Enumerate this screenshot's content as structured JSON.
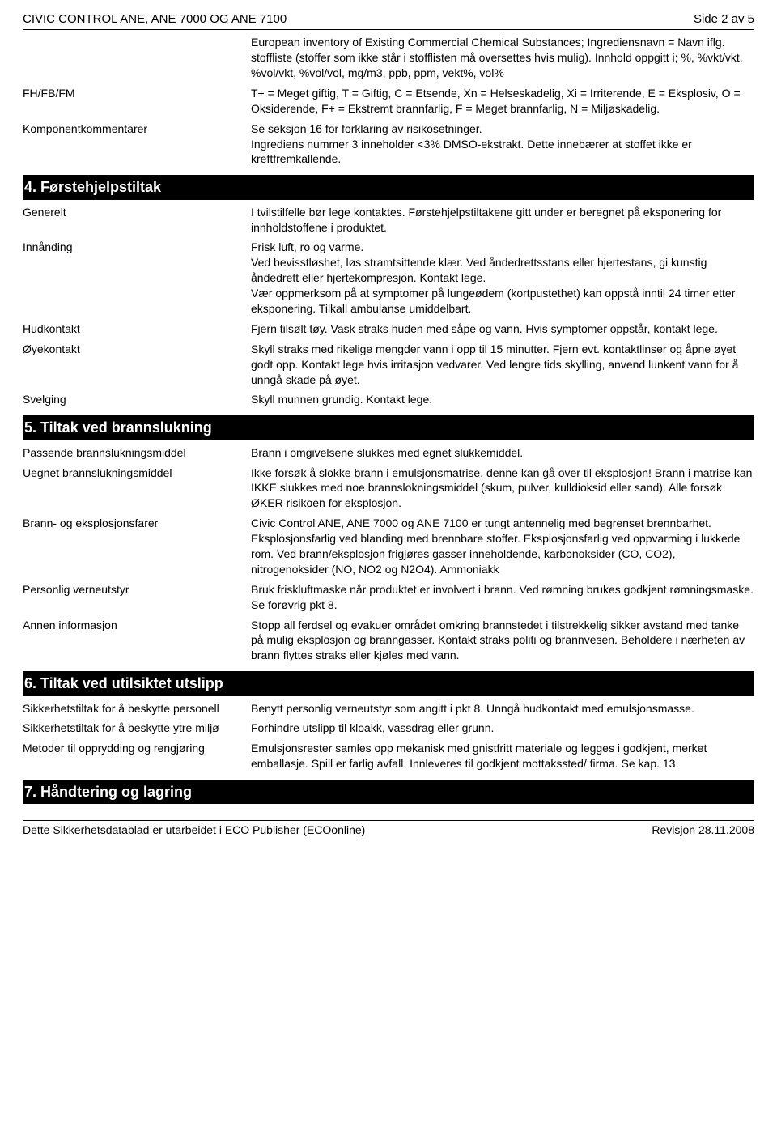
{
  "header": {
    "title": "CIVIC CONTROL ANE, ANE 7000 OG ANE 7100",
    "page": "Side 2 av 5"
  },
  "intro": "European inventory of Existing Commercial Chemical Substances; Ingrediensnavn = Navn iflg. stoffliste (stoffer som ikke står i stofflisten må oversettes hvis mulig). Innhold oppgitt i; %, %vkt/vkt, %vol/vkt, %vol/vol, mg/m3, ppb, ppm, vekt%, vol%",
  "top_rows": [
    {
      "label": "FH/FB/FM",
      "value": "T+ = Meget giftig, T = Giftig, C = Etsende, Xn = Helseskadelig, Xi = Irriterende, E = Eksplosiv, O = Oksiderende, F+ = Ekstremt brannfarlig, F = Meget brannfarlig, N = Miljøskadelig."
    },
    {
      "label": "Komponentkommentarer",
      "value": "Se seksjon 16 for forklaring av risikosetninger.\nIngrediens nummer 3 inneholder <3% DMSO-ekstrakt. Dette innebærer at stoffet ikke er kreftfremkallende."
    }
  ],
  "sections": [
    {
      "title": "4. Førstehjelpstiltak",
      "rows": [
        {
          "label": "Generelt",
          "value": "I tvilstilfelle bør lege kontaktes. Førstehjelpstiltakene gitt under er beregnet på eksponering for innholdstoffene i produktet."
        },
        {
          "label": "Innånding",
          "value": "Frisk luft, ro og varme.\nVed bevisstløshet, løs stramtsittende klær. Ved åndedrettsstans eller hjertestans, gi kunstig åndedrett eller hjertekompresjon. Kontakt lege.\nVær oppmerksom på at symptomer på lungeødem (kortpustethet) kan oppstå inntil 24 timer etter eksponering. Tilkall ambulanse umiddelbart."
        },
        {
          "label": "Hudkontakt",
          "value": "Fjern tilsølt tøy. Vask straks huden med såpe og vann. Hvis symptomer oppstår, kontakt lege."
        },
        {
          "label": "Øyekontakt",
          "value": "Skyll straks med rikelige mengder vann i opp til 15 minutter. Fjern evt. kontaktlinser og åpne øyet godt opp. Kontakt lege hvis irritasjon vedvarer. Ved lengre tids skylling, anvend lunkent vann for å unngå skade på øyet."
        },
        {
          "label": "Svelging",
          "value": "Skyll munnen grundig. Kontakt lege."
        }
      ]
    },
    {
      "title": "5. Tiltak ved brannslukning",
      "rows": [
        {
          "label": "Passende brannslukningsmiddel",
          "value": "Brann i omgivelsene slukkes med egnet slukkemiddel."
        },
        {
          "label": "Uegnet brannslukningsmiddel",
          "value": "Ikke forsøk å slokke brann i emulsjonsmatrise, denne kan gå over til eksplosjon! Brann i matrise kan IKKE slukkes med noe brannslokningsmiddel (skum, pulver, kulldioksid eller sand). Alle forsøk ØKER risikoen for eksplosjon."
        },
        {
          "label": "Brann- og eksplosjonsfarer",
          "value": "Civic Control ANE, ANE 7000 og ANE 7100 er tungt antennelig med begrenset brennbarhet.\nEksplosjonsfarlig ved blanding med brennbare stoffer. Eksplosjonsfarlig ved oppvarming i lukkede rom. Ved brann/eksplosjon frigjøres gasser inneholdende,  karbonoksider (CO, CO2), nitrogenoksider (NO, NO2 og N2O4). Ammoniakk"
        },
        {
          "label": "Personlig verneutstyr",
          "value": "Bruk friskluftmaske når produktet er involvert i brann. Ved rømning brukes godkjent rømningsmaske. Se forøvrig pkt 8."
        },
        {
          "label": "Annen informasjon",
          "value": "Stopp all ferdsel og evakuer området omkring brannstedet i tilstrekkelig sikker avstand med tanke på mulig eksplosjon og branngasser. Kontakt straks politi og brannvesen. Beholdere i nærheten av brann flyttes straks eller kjøles med vann."
        }
      ]
    },
    {
      "title": "6. Tiltak ved utilsiktet utslipp",
      "rows": [
        {
          "label": "Sikkerhetstiltak for å beskytte personell",
          "value": "Benytt personlig verneutstyr som angitt i pkt 8. Unngå hudkontakt med emulsjonsmasse."
        },
        {
          "label": "Sikkerhetstiltak for å beskytte ytre miljø",
          "value": "Forhindre utslipp til kloakk, vassdrag eller grunn."
        },
        {
          "label": "Metoder til opprydding og rengjøring",
          "value": "Emulsjonsrester samles opp mekanisk med gnistfritt materiale og legges i godkjent, merket emballasje. Spill er farlig avfall. Innleveres til godkjent mottakssted/ firma. Se kap. 13."
        }
      ]
    },
    {
      "title": "7. Håndtering og lagring",
      "rows": []
    }
  ],
  "footer": {
    "left": "Dette Sikkerhetsdatablad er utarbeidet i ECO Publisher (ECOonline)",
    "right": "Revisjon 28.11.2008"
  }
}
